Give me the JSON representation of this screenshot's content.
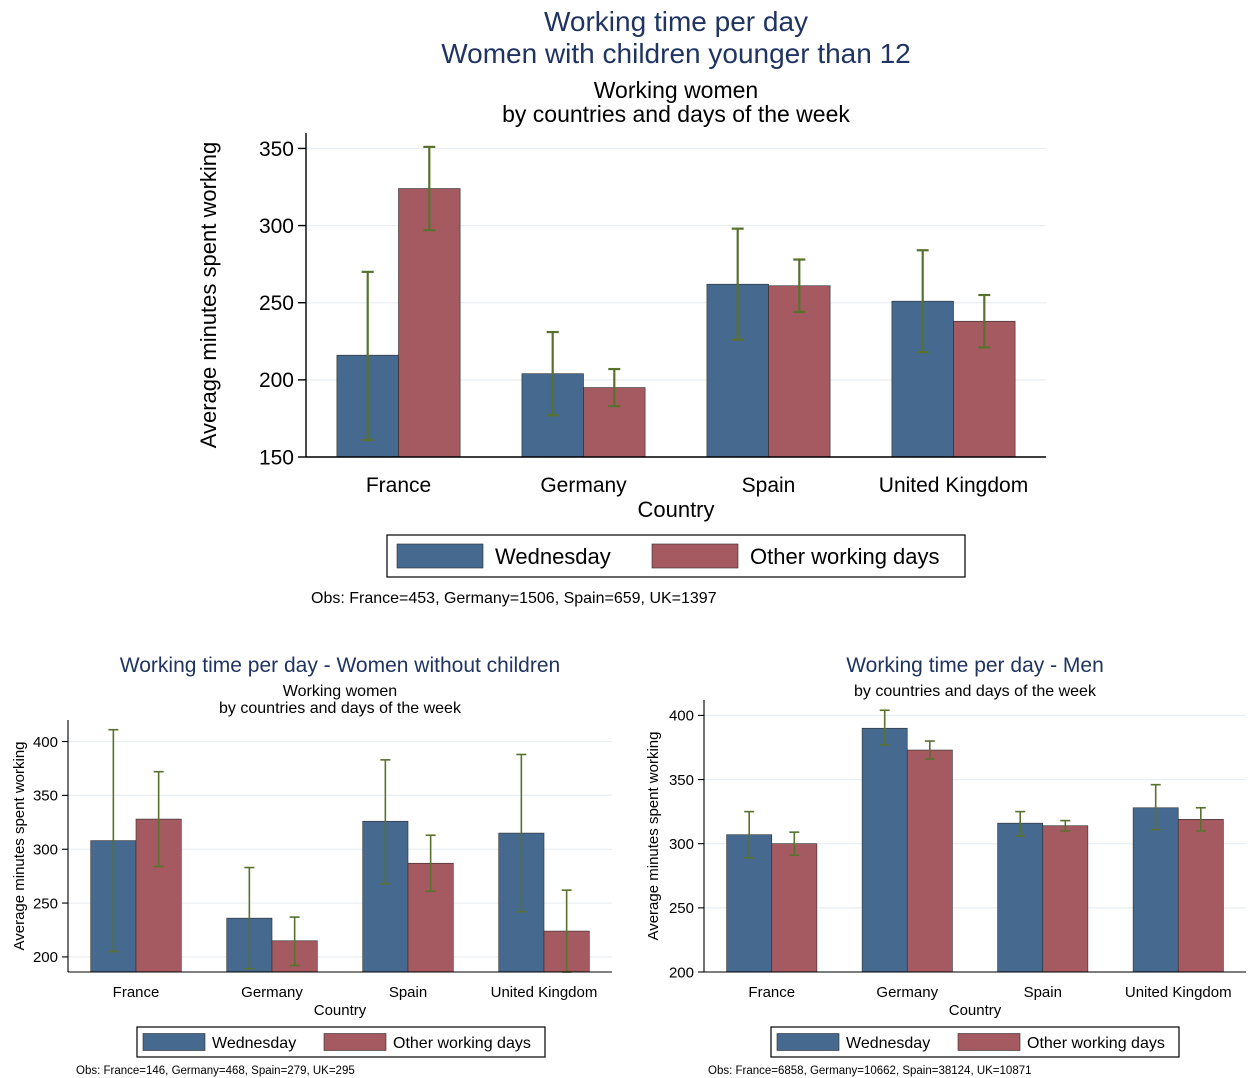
{
  "figure": {
    "title_line1": "Working time per day",
    "title_line2": "Women with children younger than 12"
  },
  "colors": {
    "wednesday": "#46698f",
    "other_days": "#a55a61",
    "error_bar": "#58722e",
    "title": "#1f3462",
    "grid": "#e8eef2"
  },
  "chart_data": [
    {
      "type": "bar",
      "subtitle_line1": "Working women",
      "subtitle_line2": "by countries and days of the week",
      "xlabel": "Country",
      "ylabel": "Average minutes spent working",
      "ylim": [
        150,
        360
      ],
      "yticks": [
        150,
        200,
        250,
        300,
        350
      ],
      "categories": [
        "France",
        "Germany",
        "Spain",
        "United Kingdom"
      ],
      "series": [
        {
          "name": "Wednesday",
          "values": [
            216,
            204,
            262,
            251
          ],
          "ci_low": [
            161,
            177,
            226,
            218
          ],
          "ci_high": [
            270,
            231,
            298,
            284
          ]
        },
        {
          "name": "Other working days",
          "values": [
            324,
            195,
            261,
            238
          ],
          "ci_low": [
            297,
            183,
            244,
            221
          ],
          "ci_high": [
            351,
            207,
            278,
            255
          ]
        }
      ],
      "legend": [
        "Wednesday",
        "Other working days"
      ],
      "legend_position": "bottom",
      "note": "Obs: France=453, Germany=1506, Spain=659, UK=1397",
      "grid": true
    },
    {
      "type": "bar",
      "title": "Working time per day - Women without children",
      "subtitle_line1": "Working women",
      "subtitle_line2": "by countries and days of the week",
      "xlabel": "Country",
      "ylabel": "Average minutes spent working",
      "ylim": [
        186,
        420
      ],
      "yticks": [
        200,
        250,
        300,
        350,
        400
      ],
      "categories": [
        "France",
        "Germany",
        "Spain",
        "United Kingdom"
      ],
      "series": [
        {
          "name": "Wednesday",
          "values": [
            308,
            236,
            326,
            315
          ],
          "ci_low": [
            205,
            189,
            268,
            242
          ],
          "ci_high": [
            411,
            283,
            383,
            388
          ]
        },
        {
          "name": "Other working days",
          "values": [
            328,
            215,
            287,
            224
          ],
          "ci_low": [
            284,
            192,
            261,
            186
          ],
          "ci_high": [
            372,
            237,
            313,
            262
          ]
        }
      ],
      "legend": [
        "Wednesday",
        "Other working days"
      ],
      "legend_position": "bottom",
      "note": "Obs: France=146, Germany=468, Spain=279, UK=295",
      "grid": true
    },
    {
      "type": "bar",
      "title": "Working time per day - Men",
      "subtitle_line1": "by countries and days of the week",
      "subtitle_line2": "",
      "xlabel": "Country",
      "ylabel": "Average minutes spent working",
      "ylim": [
        200,
        412
      ],
      "yticks": [
        200,
        250,
        300,
        350,
        400
      ],
      "categories": [
        "France",
        "Germany",
        "Spain",
        "United Kingdom"
      ],
      "series": [
        {
          "name": "Wednesday",
          "values": [
            307,
            390,
            316,
            328
          ],
          "ci_low": [
            289,
            377,
            306,
            311
          ],
          "ci_high": [
            325,
            404,
            325,
            346
          ]
        },
        {
          "name": "Other working days",
          "values": [
            300,
            373,
            314,
            319
          ],
          "ci_low": [
            291,
            366,
            310,
            310
          ],
          "ci_high": [
            309,
            380,
            318,
            328
          ]
        }
      ],
      "legend": [
        "Wednesday",
        "Other working days"
      ],
      "legend_position": "bottom",
      "note": "Obs: France=6858, Germany=10662, Spain=38124, UK=10871",
      "grid": true
    }
  ]
}
